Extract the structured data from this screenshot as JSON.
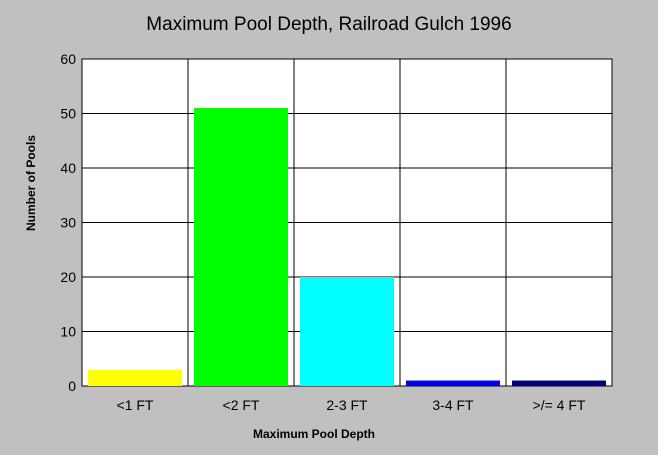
{
  "chart_data": {
    "type": "bar",
    "title": "Maximum Pool Depth, Railroad Gulch 1996",
    "xlabel": "Maximum Pool Depth",
    "ylabel": "Number of Pools",
    "categories": [
      "<1 FT",
      "<2 FT",
      "2-3 FT",
      "3-4 FT",
      ">/= 4 FT"
    ],
    "values": [
      3,
      51,
      20,
      1,
      1
    ],
    "colors": [
      "#ffff00",
      "#00ff00",
      "#00ffff",
      "#0000ff",
      "#000080"
    ],
    "ylim": [
      0,
      60
    ],
    "yticks": [
      0,
      10,
      20,
      30,
      40,
      50,
      60
    ],
    "grid": true,
    "legend": "none"
  }
}
